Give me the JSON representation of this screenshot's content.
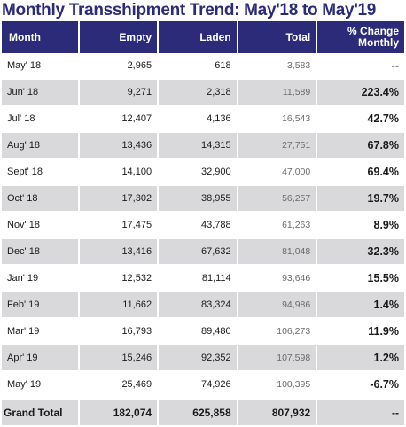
{
  "title": "Monthly Transshipment Trend: May'18 to May'19",
  "chart_data": {
    "type": "table",
    "title": "Monthly Transshipment Trend: May'18 to May'19",
    "columns": [
      "Month",
      "Empty",
      "Laden",
      "Total",
      "% Change Monthly"
    ],
    "rows": [
      {
        "month": "May' 18",
        "empty": "2,965",
        "laden": "618",
        "total": "3,583",
        "change": "--"
      },
      {
        "month": "Jun' 18",
        "empty": "9,271",
        "laden": "2,318",
        "total": "11,589",
        "change": "223.4%"
      },
      {
        "month": "Jul' 18",
        "empty": "12,407",
        "laden": "4,136",
        "total": "16,543",
        "change": "42.7%"
      },
      {
        "month": "Aug' 18",
        "empty": "13,436",
        "laden": "14,315",
        "total": "27,751",
        "change": "67.8%"
      },
      {
        "month": "Sept' 18",
        "empty": "14,100",
        "laden": "32,900",
        "total": "47,000",
        "change": "69.4%"
      },
      {
        "month": "Oct' 18",
        "empty": "17,302",
        "laden": "38,955",
        "total": "56,257",
        "change": "19.7%"
      },
      {
        "month": "Nov' 18",
        "empty": "17,475",
        "laden": "43,788",
        "total": "61,263",
        "change": "8.9%"
      },
      {
        "month": "Dec' 18",
        "empty": "13,416",
        "laden": "67,632",
        "total": "81,048",
        "change": "32.3%"
      },
      {
        "month": "Jan' 19",
        "empty": "12,532",
        "laden": "81,114",
        "total": "93,646",
        "change": "15.5%"
      },
      {
        "month": "Feb' 19",
        "empty": "11,662",
        "laden": "83,324",
        "total": "94,986",
        "change": "1.4%"
      },
      {
        "month": "Mar' 19",
        "empty": "16,793",
        "laden": "89,480",
        "total": "106,273",
        "change": "11.9%"
      },
      {
        "month": "Apr' 19",
        "empty": "15,246",
        "laden": "92,352",
        "total": "107,598",
        "change": "1.2%"
      },
      {
        "month": "May' 19",
        "empty": "25,469",
        "laden": "74,926",
        "total": "100,395",
        "change": "-6.7%"
      }
    ],
    "grand_total": {
      "month": "Grand Total",
      "empty": "182,074",
      "laden": "625,858",
      "total": "807,932",
      "change": "--"
    }
  },
  "colors": {
    "header": "#2c2b7a",
    "title": "#2c2b7a",
    "stripe": "#d9d9dc"
  }
}
